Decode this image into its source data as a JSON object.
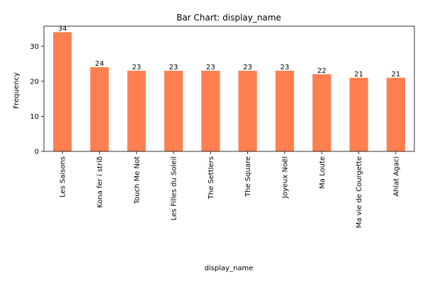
{
  "chart_data": {
    "type": "bar",
    "title": "Bar Chart: display_name",
    "xlabel": "display_name",
    "ylabel": "Frequency",
    "categories": [
      "Les Saisons",
      "Kona fer í stríð",
      "Touch Me Not",
      "Les Filles du Soleil",
      "The Settlers",
      "The Square",
      "Joyeux Noël",
      "Ma Loute",
      "Ma vie de Courgette",
      "Ahlat Agaci"
    ],
    "values": [
      34,
      24,
      23,
      23,
      23,
      23,
      23,
      22,
      21,
      21
    ],
    "ylim": [
      0,
      35.7
    ],
    "yticks": [
      0,
      10,
      20,
      30
    ],
    "grid": false,
    "legend": "none",
    "bar_color": "#FF7F50"
  }
}
